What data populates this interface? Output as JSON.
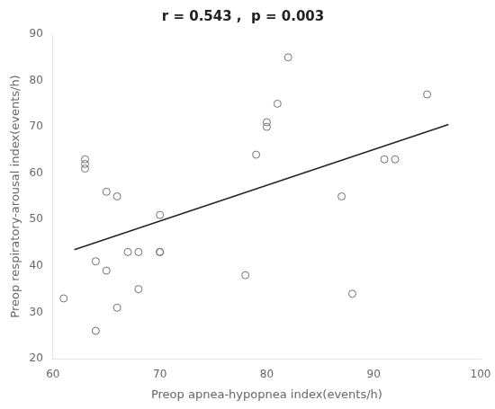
{
  "chart_data": {
    "type": "scatter",
    "title": "r = 0.543 ,  p = 0.003",
    "x_label": "Preop apnea-hypopnea index(events/h)",
    "y_label": "Preop respiratory-arousal index(events/h)",
    "series": [
      {
        "type": "scatter",
        "marker": "circle",
        "color": "#707070",
        "x": [
          61,
          63,
          63,
          63,
          64,
          64,
          65,
          65,
          66,
          66,
          67,
          68,
          68,
          70,
          70,
          70,
          78,
          79,
          80,
          80,
          81,
          82,
          87,
          88,
          91,
          92,
          95
        ],
        "values": [
          33,
          62,
          63,
          61,
          41,
          26,
          39,
          56,
          55,
          31,
          43,
          35,
          43,
          43,
          51,
          43,
          38,
          64,
          71,
          70,
          75,
          85,
          55,
          34,
          63,
          63,
          77
        ]
      },
      {
        "type": "line",
        "line_style": "solid",
        "color": "#222222",
        "x": [
          62,
          97
        ],
        "values": [
          43.5,
          70.5
        ]
      }
    ],
    "xlim": [
      60,
      100
    ],
    "ylim": [
      20,
      90
    ],
    "xticks": [
      60,
      70,
      80,
      90,
      100
    ],
    "yticks": [
      20,
      30,
      40,
      50,
      60,
      70,
      80,
      90
    ],
    "grid": false
  }
}
